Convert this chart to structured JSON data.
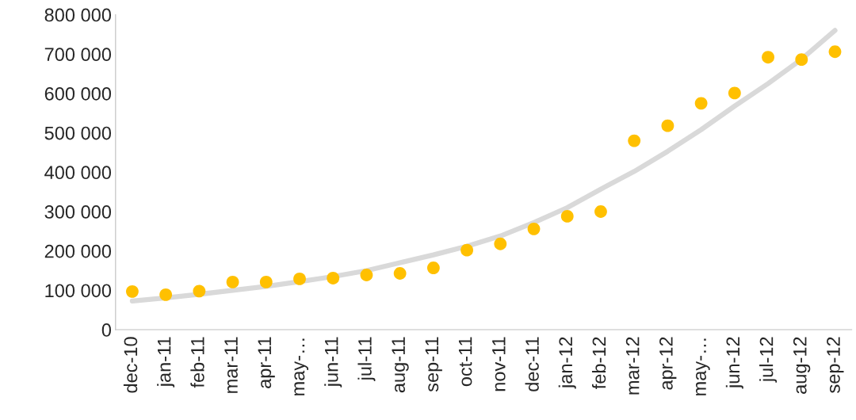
{
  "chart_data": {
    "type": "scatter",
    "categories": [
      "dec-10",
      "jan-11",
      "feb-11",
      "mar-11",
      "apr-11",
      "may-…",
      "jun-11",
      "jul-11",
      "aug-11",
      "sep-11",
      "oct-11",
      "nov-11",
      "dec-11",
      "jan-12",
      "feb-12",
      "mar-12",
      "apr-12",
      "may-…",
      "jun-12",
      "jul-12",
      "aug-12",
      "sep-12"
    ],
    "series": [
      {
        "type": "line",
        "color": "#d9d9d9",
        "marker": "none",
        "values": [
          73000,
          81000,
          90000,
          100000,
          110000,
          122000,
          135000,
          150000,
          170000,
          190000,
          212000,
          238000,
          272000,
          310000,
          357000,
          402000,
          453000,
          508000,
          568000,
          625000,
          687000,
          760000
        ]
      },
      {
        "color": "#ffc000",
        "marker": "circle",
        "values": [
          97000,
          89000,
          98000,
          121000,
          121000,
          129000,
          131000,
          139000,
          143000,
          157000,
          202000,
          218000,
          256000,
          288000,
          300000,
          480000,
          518000,
          575000,
          601000,
          692000,
          686000,
          706000
        ]
      }
    ],
    "ylim": [
      0,
      800000
    ],
    "yticks": [
      {
        "value": 0,
        "label": "0"
      },
      {
        "value": 100000,
        "label": "100 000"
      },
      {
        "value": 200000,
        "label": "200 000"
      },
      {
        "value": 300000,
        "label": "300 000"
      },
      {
        "value": 400000,
        "label": "400 000"
      },
      {
        "value": 500000,
        "label": "500 000"
      },
      {
        "value": 600000,
        "label": "600 000"
      },
      {
        "value": 700000,
        "label": "700 000"
      },
      {
        "value": 800000,
        "label": "800 000"
      }
    ],
    "grid": false
  }
}
